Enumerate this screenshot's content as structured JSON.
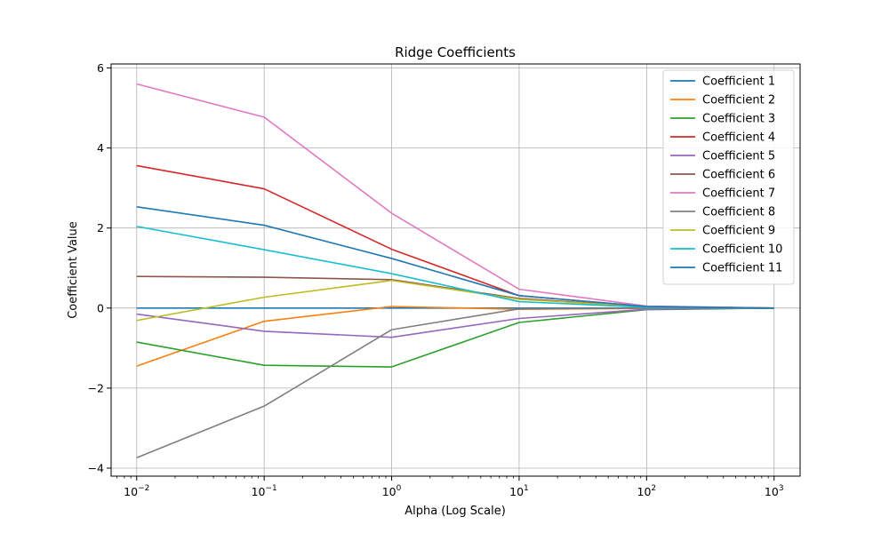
{
  "chart_data": {
    "type": "line",
    "title": "Ridge Coefficients",
    "xlabel": "Alpha (Log Scale)",
    "ylabel": "Coefficient Value",
    "xscale": "log",
    "x": [
      0.01,
      0.1,
      1,
      10,
      100,
      1000
    ],
    "x_tick_labels": [
      {
        "base": "10",
        "exp": "−2"
      },
      {
        "base": "10",
        "exp": "−1"
      },
      {
        "base": "10",
        "exp": "0"
      },
      {
        "base": "10",
        "exp": "1"
      },
      {
        "base": "10",
        "exp": "2"
      },
      {
        "base": "10",
        "exp": "3"
      }
    ],
    "xlim": [
      0.0063,
      1600
    ],
    "ylim": [
      -4.2,
      6.1
    ],
    "y_ticks": [
      -4,
      -2,
      0,
      2,
      4,
      6
    ],
    "y_tick_labels": [
      "−4",
      "−2",
      "0",
      "2",
      "4",
      "6"
    ],
    "grid": true,
    "legend_position": "top-right",
    "series": [
      {
        "name": "Coefficient 1",
        "color": "#1f77b4",
        "values": [
          0,
          0,
          0,
          0,
          0,
          0
        ]
      },
      {
        "name": "Coefficient 2",
        "color": "#ff7f0e",
        "values": [
          -1.45,
          -0.33,
          0.04,
          -0.03,
          -0.01,
          0
        ]
      },
      {
        "name": "Coefficient 3",
        "color": "#2ca02c",
        "values": [
          -0.85,
          -1.43,
          -1.47,
          -0.36,
          -0.04,
          0
        ]
      },
      {
        "name": "Coefficient 4",
        "color": "#d62728",
        "values": [
          3.56,
          2.98,
          1.47,
          0.31,
          0.04,
          0
        ]
      },
      {
        "name": "Coefficient 5",
        "color": "#9467bd",
        "values": [
          -0.15,
          -0.58,
          -0.73,
          -0.26,
          -0.03,
          0
        ]
      },
      {
        "name": "Coefficient 6",
        "color": "#8c564b",
        "values": [
          0.79,
          0.77,
          0.71,
          0.24,
          0.03,
          0
        ]
      },
      {
        "name": "Coefficient 7",
        "color": "#e377c2",
        "values": [
          5.6,
          4.77,
          2.37,
          0.47,
          0.05,
          0
        ]
      },
      {
        "name": "Coefficient 8",
        "color": "#7f7f7f",
        "values": [
          -3.74,
          -2.45,
          -0.54,
          -0.02,
          0,
          0
        ]
      },
      {
        "name": "Coefficient 9",
        "color": "#bcbd22",
        "values": [
          -0.31,
          0.27,
          0.69,
          0.22,
          0.03,
          0
        ]
      },
      {
        "name": "Coefficient 10",
        "color": "#17becf",
        "values": [
          2.04,
          1.46,
          0.86,
          0.16,
          0.02,
          0
        ]
      },
      {
        "name": "Coefficient 11",
        "color": "#1f77b4",
        "values": [
          2.53,
          2.07,
          1.24,
          0.31,
          0.04,
          0
        ]
      }
    ]
  }
}
